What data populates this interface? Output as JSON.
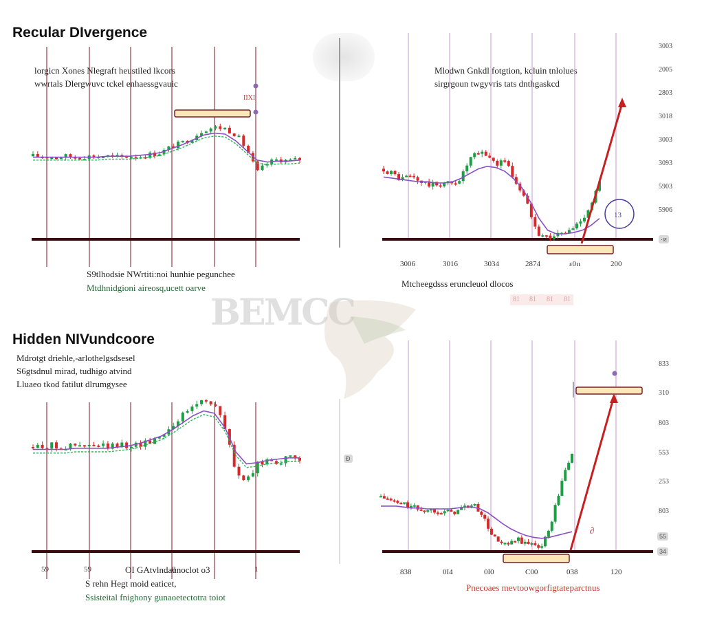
{
  "titles": {
    "regular": "Recular DIvergence",
    "hidden": "Hidden NIVundcoore"
  },
  "watermark": "BEMCC",
  "panels": {
    "tl": {
      "caption_top": [
        "lorgicn Xones Nlegraft heustiled lkcors",
        "wwrtals Dlergwuvc tckel enhaessgvauic"
      ],
      "caption_bottom": [
        "S9tlhodsie NWrtiti:noi hunhie pegunchee",
        "Mtdhnidgioni aireosq,ucett oarve"
      ],
      "marker_text": "IIXI"
    },
    "tr": {
      "caption_top": [
        "Mlodwn Gnkdl fotgtion, kcluin tnlolues",
        "sirgrgoun twgyvris tats dnthgaskcd"
      ],
      "caption_bottom": [
        "Mtcheegdsss eruncleuol dlocos"
      ],
      "y_labels": [
        "3003",
        "2005",
        "2803",
        "3018",
        "3003",
        "3093",
        "5903",
        "5906"
      ],
      "x_labels": [
        "3006",
        "3016",
        "3034",
        "2874",
        "ε0ιι",
        "200"
      ],
      "faint_labels": [
        "81",
        "81",
        "81",
        "81"
      ],
      "badge": "·ιε"
    },
    "bl": {
      "caption_top": [
        "Mdrotgt driehle,-arlothelgsdsesel",
        "S6gtsdnul mirad, tudhigo atvind",
        "Lluaeo tkod fatilut dlrumgysee"
      ],
      "caption_mid": "OI GAtvlndaunoclot o3",
      "caption_bottom": [
        "S rehn Hegt moid eaticet,",
        "Ssisteital fnighony gunaoetectotra toiot"
      ],
      "x_labels": [
        "59",
        "59",
        "8",
        "1"
      ]
    },
    "br": {
      "caption_bottom": "Pnecoaes mevtoowgorfigtateparctnus",
      "y_labels": [
        "833",
        "310",
        "803",
        "553",
        "253",
        "803"
      ],
      "x_labels": [
        "838",
        "0Ι4",
        "0Ι0",
        "C00",
        "038",
        "120"
      ],
      "badge_a": "55",
      "badge_b": "34",
      "left_badge": "Ð"
    }
  },
  "chart_data": [
    {
      "type": "line",
      "panel": "Recular DIvergence (left)",
      "x": [
        0,
        4,
        8,
        12,
        16,
        20,
        24,
        28,
        32,
        36,
        40,
        44,
        48,
        50,
        52,
        56,
        60,
        64,
        68,
        72,
        76,
        80,
        84,
        88,
        92,
        96,
        100
      ],
      "series": [
        {
          "values": [
            52,
            52,
            51,
            52,
            51,
            52,
            52,
            52,
            51,
            52,
            52,
            54,
            56,
            59,
            62,
            66,
            72,
            80,
            82,
            81,
            75,
            60,
            35,
            45,
            49,
            47,
            49
          ]
        },
        {
          "values": [
            51,
            51,
            51,
            51,
            51,
            51,
            51,
            52,
            52,
            52,
            53,
            54,
            56,
            58,
            60,
            64,
            69,
            74,
            76,
            75,
            68,
            58,
            48,
            46,
            47,
            47,
            48
          ]
        }
      ]
    },
    {
      "type": "line",
      "panel": "Recular DIvergence (right)",
      "x": [
        0,
        4,
        8,
        12,
        16,
        20,
        24,
        28,
        32,
        36,
        40,
        44,
        48,
        52,
        56,
        60,
        64,
        68,
        72,
        76,
        80,
        84,
        88,
        92,
        96,
        100
      ],
      "series": [
        {
          "values": [
            62,
            58,
            53,
            56,
            52,
            49,
            48,
            50,
            49,
            55,
            70,
            75,
            74,
            66,
            70,
            55,
            42,
            25,
            8,
            4,
            6,
            8,
            12,
            20,
            32,
            50
          ]
        },
        {
          "values": [
            55,
            54,
            53,
            52,
            51,
            51,
            50,
            50,
            51,
            54,
            58,
            62,
            64,
            63,
            60,
            54,
            46,
            34,
            20,
            10,
            7,
            7,
            8,
            10,
            14,
            20
          ]
        }
      ]
    },
    {
      "type": "line",
      "panel": "Hidden NIVundcoore (left)",
      "x": [
        0,
        4,
        8,
        12,
        16,
        20,
        24,
        28,
        32,
        36,
        40,
        44,
        48,
        52,
        56,
        60,
        64,
        68,
        72,
        76,
        80,
        84,
        88,
        92,
        96,
        100
      ],
      "series": [
        {
          "values": [
            40,
            41,
            41,
            40,
            41,
            40,
            41,
            40,
            41,
            42,
            42,
            45,
            50,
            58,
            66,
            74,
            80,
            76,
            55,
            20,
            10,
            25,
            30,
            28,
            30,
            31
          ]
        },
        {
          "values": [
            38,
            38,
            38,
            38,
            39,
            39,
            39,
            39,
            40,
            41,
            43,
            46,
            49,
            54,
            60,
            66,
            70,
            68,
            56,
            36,
            26,
            27,
            29,
            30,
            31,
            31
          ]
        }
      ]
    },
    {
      "type": "line",
      "panel": "Hidden NIVundcoore (right)",
      "x": [
        0,
        4,
        8,
        12,
        16,
        20,
        24,
        28,
        32,
        36,
        40,
        44,
        48,
        52,
        56,
        60,
        64,
        68,
        72,
        76,
        80,
        84,
        88,
        92,
        96,
        100
      ],
      "series": [
        {
          "values": [
            55,
            52,
            48,
            47,
            44,
            42,
            40,
            41,
            40,
            38,
            40,
            44,
            46,
            40,
            22,
            10,
            3,
            5,
            10,
            4,
            6,
            2,
            20,
            50,
            80,
            100
          ]
        },
        {
          "values": [
            45,
            45,
            45,
            44,
            43,
            43,
            42,
            42,
            42,
            42,
            43,
            44,
            44,
            42,
            38,
            32,
            26,
            21,
            17,
            14,
            12,
            11,
            12,
            14,
            16,
            18
          ]
        }
      ]
    }
  ]
}
